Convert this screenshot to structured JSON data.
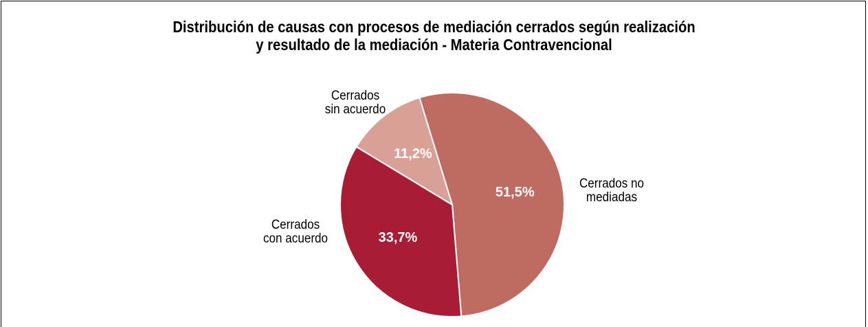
{
  "chart_data": {
    "type": "pie",
    "title": "Distribución de causas con procesos de mediación cerrados según realización\ny resultado de la mediación - Materia Contravencional",
    "categories": [
      "Cerrados no\nmediadas",
      "Cerrados\ncon acuerdo",
      "Cerrados\nsin acuerdo"
    ],
    "values": [
      51.5,
      33.7,
      11.2
    ],
    "value_labels": [
      "51,5%",
      "33,7%",
      "11,2%"
    ],
    "colors": [
      "#c06b62",
      "#a81c34",
      "#d9a097"
    ]
  }
}
